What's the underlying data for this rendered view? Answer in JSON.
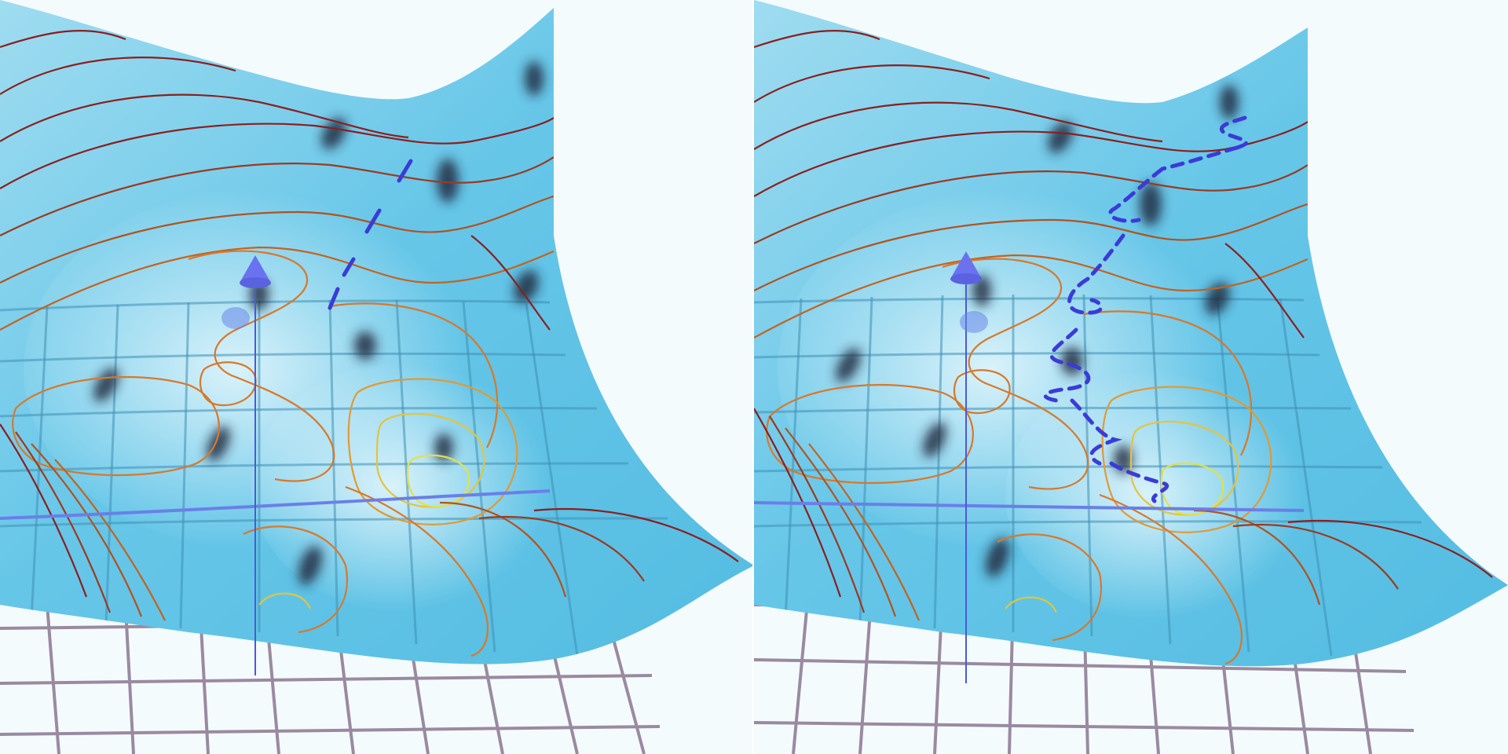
{
  "figure": {
    "panels": [
      {
        "id": "left",
        "path_style": "straight-dashed"
      },
      {
        "id": "right",
        "path_style": "wandering-dashed"
      }
    ],
    "colors": {
      "surface_light": "#dff4fb",
      "surface_mid": "#9fdcf0",
      "surface_dark": "#58bfe3",
      "floor_grid": "#9a8aa0",
      "path": "#3b3bd6",
      "marker": "#6a72f0",
      "contour_outer": "#8a1f1f",
      "contour_mid": "#d8782a",
      "contour_inner": "#e3e04a"
    }
  }
}
